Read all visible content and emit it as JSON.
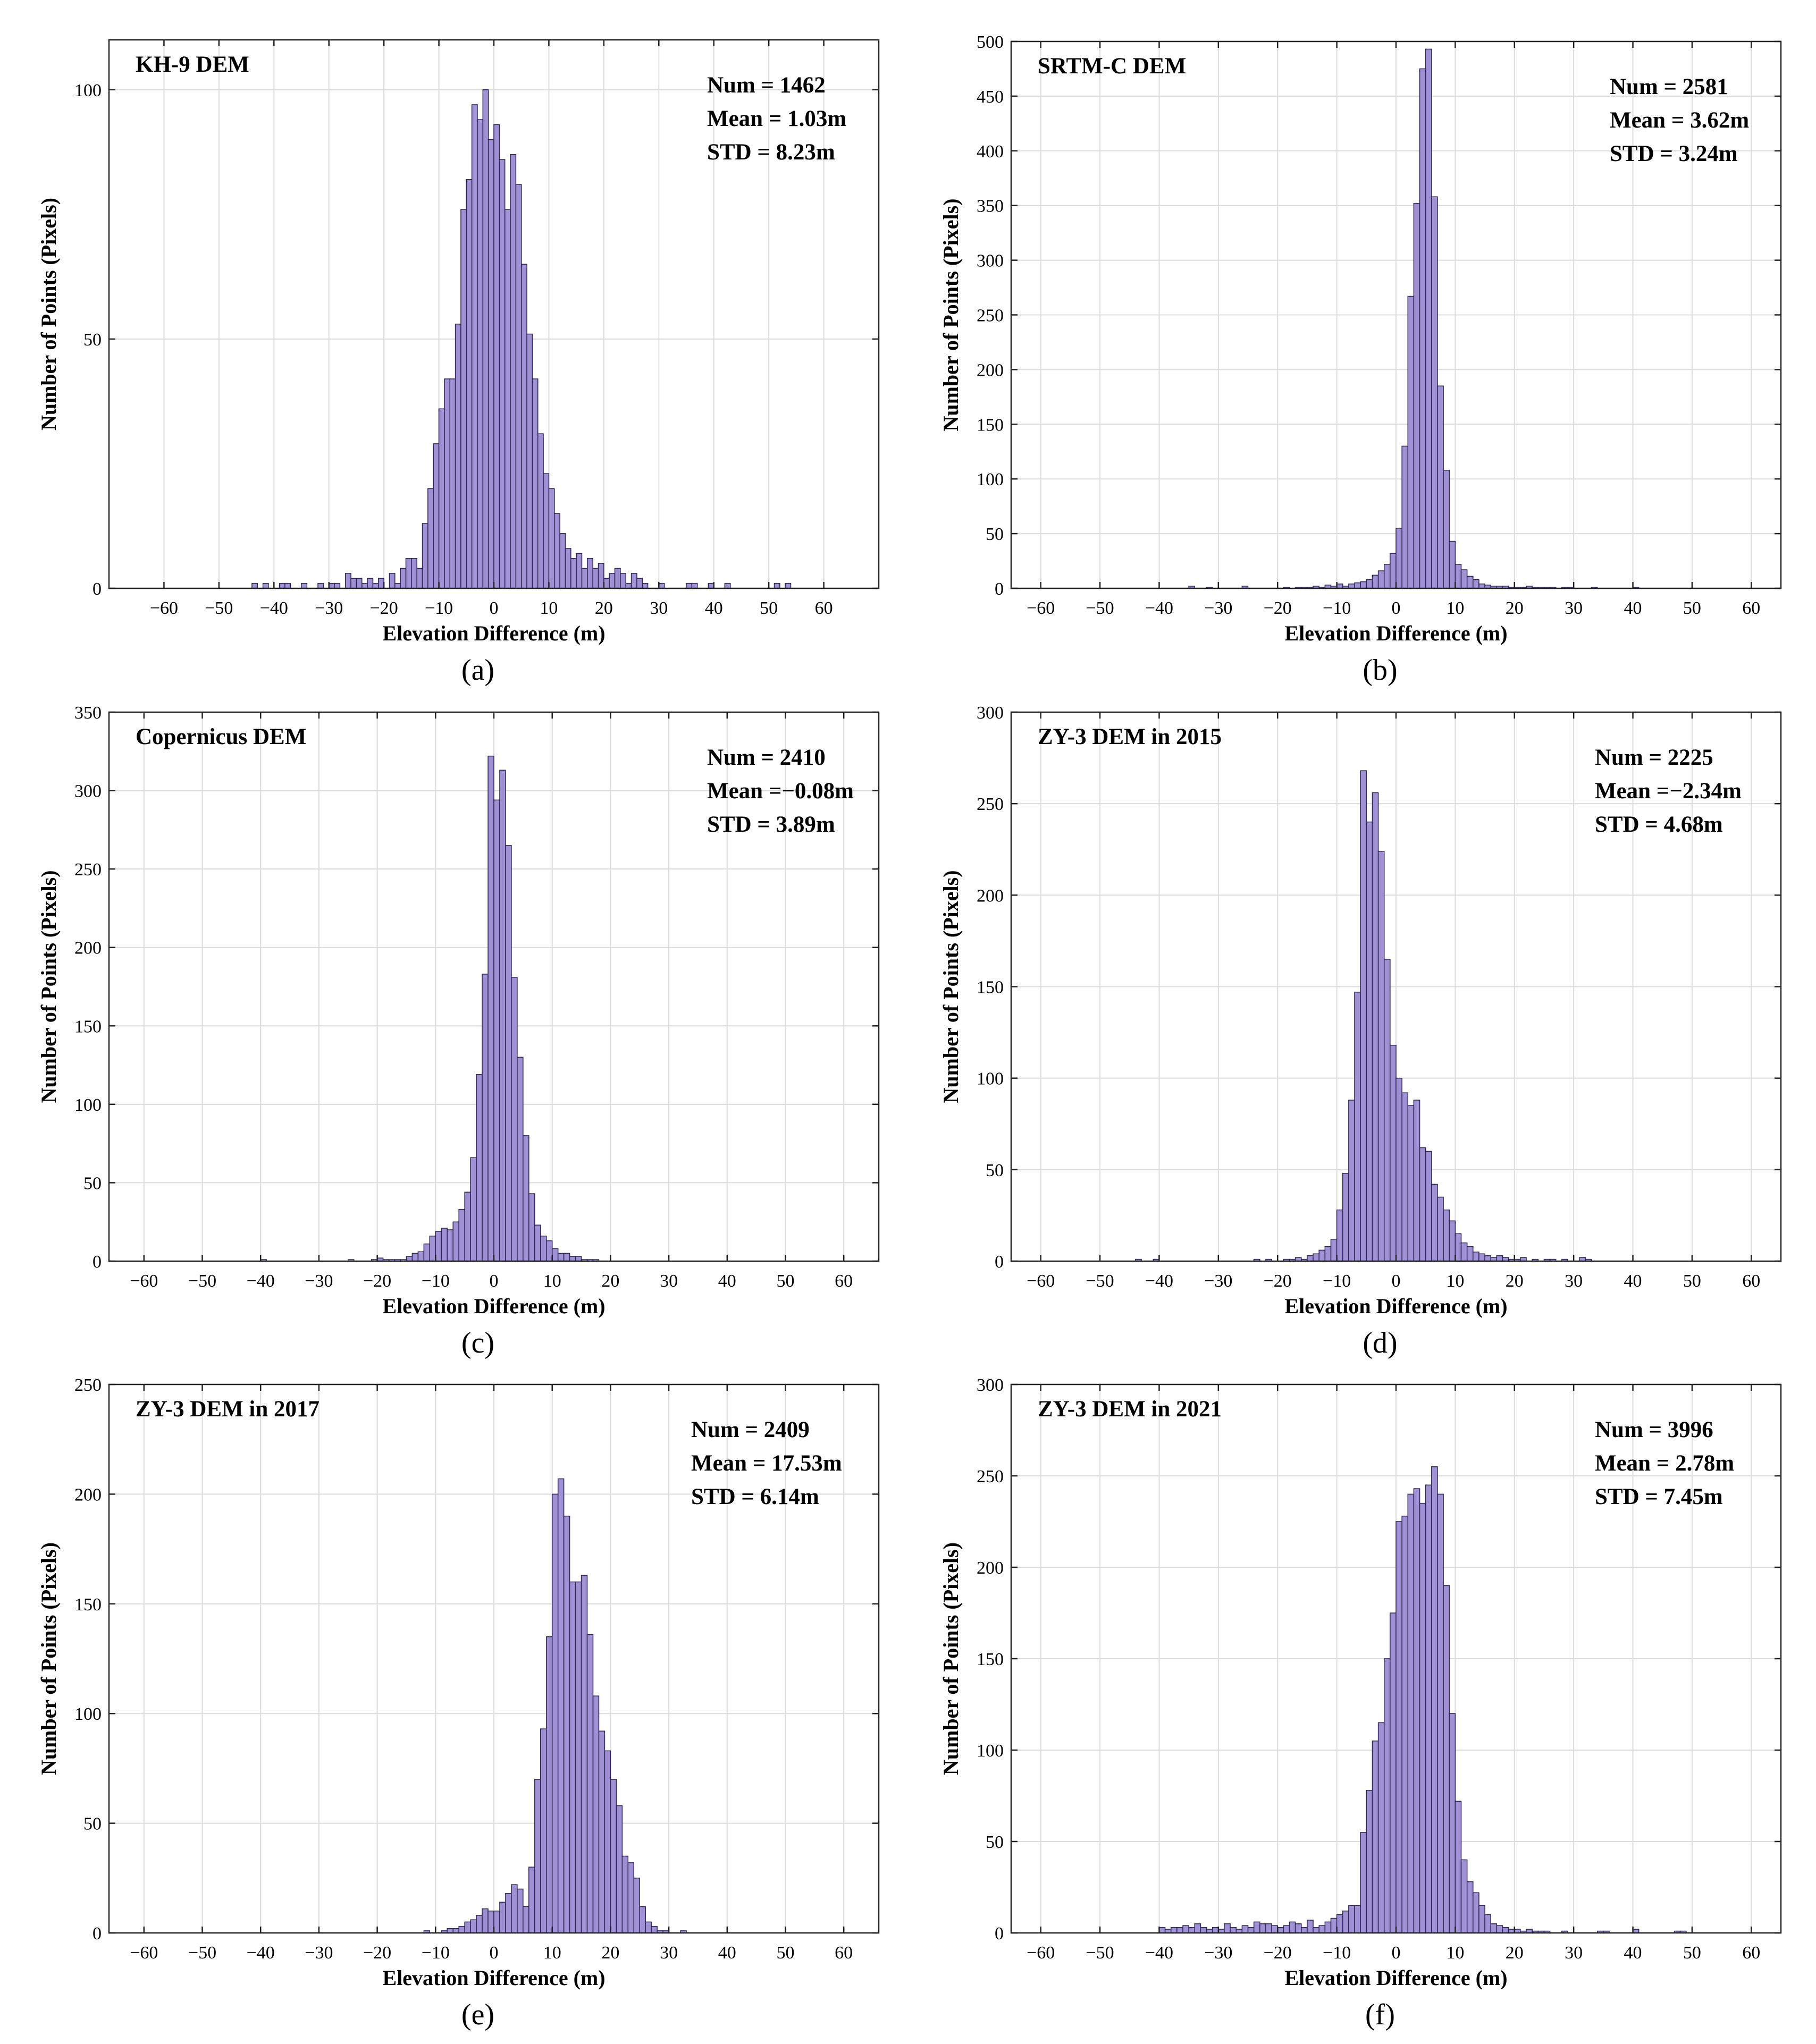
{
  "colors": {
    "bar_fill": "#9f91d3",
    "bar_edge": "#2c2557",
    "grid": "#dcdcdc"
  },
  "chart_data": [
    {
      "type": "bar",
      "caption": "(a)",
      "title": "KH-9 DEM",
      "stats": [
        "Num = 1462",
        "Mean = 1.03m",
        "STD = 8.23m"
      ],
      "xlabel": "Elevation Difference (m)",
      "ylabel": "Number of Points (Pixels)",
      "xlim": [
        -70,
        70
      ],
      "ylim": [
        0,
        110
      ],
      "xticks": [
        -60,
        -50,
        -40,
        -30,
        -20,
        -10,
        0,
        10,
        20,
        30,
        40,
        50,
        60
      ],
      "yticks": [
        0,
        50,
        100
      ],
      "bin_width": 1,
      "bin_start": -44,
      "values": [
        1,
        0,
        1,
        0,
        0,
        1,
        1,
        0,
        0,
        1,
        0,
        0,
        1,
        0,
        1,
        1,
        0,
        3,
        2,
        2,
        1,
        2,
        1,
        2,
        0,
        3,
        1,
        4,
        6,
        6,
        4,
        13,
        20,
        29,
        36,
        42,
        42,
        53,
        76,
        82,
        97,
        94,
        100,
        90,
        93,
        86,
        76,
        87,
        81,
        65,
        51,
        42,
        31,
        23,
        20,
        15,
        11,
        8,
        6,
        7,
        4,
        6,
        4,
        5,
        2,
        3,
        4,
        3,
        1,
        3,
        2,
        1,
        0,
        0,
        1,
        0,
        0,
        0,
        0,
        1,
        1,
        0,
        0,
        1,
        0,
        0,
        1,
        0,
        0,
        0,
        0,
        0,
        0,
        0,
        0,
        1,
        0,
        1
      ]
    },
    {
      "type": "bar",
      "caption": "(b)",
      "title": "SRTM-C DEM",
      "stats": [
        "Num = 2581",
        "Mean = 3.62m",
        "STD = 3.24m"
      ],
      "xlabel": "Elevation Difference (m)",
      "ylabel": "Number of Points (Pixels)",
      "xlim": [
        -65,
        65
      ],
      "ylim": [
        0,
        500
      ],
      "xticks": [
        -60,
        -50,
        -40,
        -30,
        -20,
        -10,
        0,
        10,
        20,
        30,
        40,
        50,
        60
      ],
      "yticks": [
        0,
        50,
        100,
        150,
        200,
        250,
        300,
        350,
        400,
        450,
        500
      ],
      "bin_width": 1,
      "bin_start": -35,
      "values": [
        2,
        0,
        0,
        1,
        0,
        0,
        0,
        0,
        0,
        2,
        0,
        0,
        0,
        0,
        0,
        0,
        1,
        0,
        1,
        1,
        1,
        2,
        1,
        3,
        2,
        4,
        2,
        4,
        5,
        6,
        8,
        12,
        16,
        22,
        32,
        55,
        130,
        267,
        352,
        475,
        493,
        358,
        185,
        108,
        43,
        22,
        17,
        11,
        8,
        4,
        3,
        2,
        2,
        2,
        1,
        1,
        1,
        2,
        1,
        1,
        1,
        1,
        0,
        1,
        1,
        0,
        0,
        0,
        1,
        0,
        0,
        0,
        0,
        0,
        0,
        1
      ]
    },
    {
      "type": "bar",
      "caption": "(c)",
      "title": "Copernicus DEM",
      "stats": [
        "Num = 2410",
        "Mean =−0.08m",
        "STD = 3.89m"
      ],
      "xlabel": "Elevation Difference (m)",
      "ylabel": "Number of Points (Pixels)",
      "xlim": [
        -66,
        66
      ],
      "ylim": [
        0,
        350
      ],
      "xticks": [
        -60,
        -50,
        -40,
        -30,
        -20,
        -10,
        0,
        10,
        20,
        30,
        40,
        50,
        60
      ],
      "yticks": [
        0,
        50,
        100,
        150,
        200,
        250,
        300,
        350
      ],
      "bin_width": 1,
      "bin_start": -40,
      "values": [
        1,
        0,
        0,
        0,
        0,
        0,
        0,
        0,
        0,
        0,
        0,
        0,
        0,
        0,
        0,
        1,
        0,
        0,
        0,
        1,
        2,
        1,
        1,
        1,
        1,
        3,
        5,
        6,
        11,
        16,
        19,
        21,
        20,
        25,
        33,
        44,
        66,
        119,
        183,
        322,
        294,
        313,
        265,
        181,
        130,
        80,
        43,
        23,
        16,
        13,
        8,
        5,
        5,
        3,
        3,
        1,
        1,
        1
      ]
    },
    {
      "type": "bar",
      "caption": "(d)",
      "title": "ZY-3 DEM in 2015",
      "stats": [
        "Num = 2225",
        "Mean =−2.34m",
        "STD = 4.68m"
      ],
      "xlabel": "Elevation Difference (m)",
      "ylabel": "Number of Points (Pixels)",
      "xlim": [
        -65,
        65
      ],
      "ylim": [
        0,
        300
      ],
      "xticks": [
        -60,
        -50,
        -40,
        -30,
        -20,
        -10,
        0,
        10,
        20,
        30,
        40,
        50,
        60
      ],
      "yticks": [
        0,
        50,
        100,
        150,
        200,
        250,
        300
      ],
      "bin_width": 1,
      "bin_start": -44,
      "values": [
        1,
        0,
        0,
        1,
        0,
        0,
        0,
        0,
        0,
        0,
        0,
        0,
        0,
        0,
        0,
        0,
        0,
        0,
        0,
        0,
        1,
        0,
        1,
        0,
        0,
        1,
        1,
        2,
        1,
        3,
        4,
        6,
        8,
        12,
        28,
        48,
        88,
        147,
        268,
        240,
        256,
        224,
        165,
        118,
        100,
        92,
        85,
        88,
        62,
        60,
        42,
        35,
        28,
        22,
        15,
        10,
        8,
        5,
        4,
        3,
        2,
        3,
        2,
        1,
        1,
        2,
        0,
        1,
        0,
        1,
        1,
        0,
        1,
        0,
        0,
        2,
        1
      ]
    },
    {
      "type": "bar",
      "caption": "(e)",
      "title": "ZY-3 DEM in 2017",
      "stats": [
        "Num = 2409",
        "Mean = 17.53m",
        "STD = 6.14m"
      ],
      "xlabel": "Elevation Difference (m)",
      "ylabel": "Number of Points (Pixels)",
      "xlim": [
        -66,
        66
      ],
      "ylim": [
        0,
        250
      ],
      "xticks": [
        -60,
        -50,
        -40,
        -30,
        -20,
        -10,
        0,
        10,
        20,
        30,
        40,
        50,
        60
      ],
      "yticks": [
        0,
        50,
        100,
        150,
        200,
        250
      ],
      "bin_width": 1,
      "bin_start": -12,
      "values": [
        1,
        0,
        0,
        1,
        2,
        2,
        3,
        5,
        6,
        8,
        11,
        10,
        10,
        14,
        18,
        22,
        20,
        12,
        30,
        70,
        93,
        135,
        200,
        207,
        190,
        160,
        160,
        163,
        136,
        108,
        92,
        83,
        70,
        58,
        35,
        32,
        25,
        12,
        5,
        3,
        1,
        1,
        0,
        0,
        1
      ]
    },
    {
      "type": "bar",
      "caption": "(f)",
      "title": "ZY-3 DEM in 2021",
      "stats": [
        "Num = 3996",
        "Mean = 2.78m",
        "STD = 7.45m"
      ],
      "xlabel": "Elevation Difference (m)",
      "ylabel": "Number of Points (Pixels)",
      "xlim": [
        -65,
        65
      ],
      "ylim": [
        0,
        300
      ],
      "xticks": [
        -60,
        -50,
        -40,
        -30,
        -20,
        -10,
        0,
        10,
        20,
        30,
        40,
        50,
        60
      ],
      "yticks": [
        0,
        50,
        100,
        150,
        200,
        250,
        300
      ],
      "bin_width": 1,
      "bin_start": -40,
      "values": [
        3,
        2,
        3,
        3,
        4,
        3,
        5,
        3,
        2,
        3,
        2,
        5,
        3,
        2,
        4,
        3,
        6,
        5,
        5,
        4,
        3,
        4,
        6,
        5,
        3,
        7,
        3,
        4,
        6,
        8,
        10,
        12,
        15,
        15,
        55,
        78,
        105,
        115,
        150,
        175,
        225,
        228,
        240,
        243,
        235,
        245,
        255,
        240,
        190,
        120,
        72,
        40,
        28,
        22,
        15,
        10,
        5,
        4,
        3,
        2,
        2,
        1,
        2,
        1,
        1,
        1,
        0,
        0,
        1,
        0,
        0,
        0,
        0,
        0,
        1,
        1,
        0,
        0,
        0,
        0,
        2,
        0,
        0,
        0,
        0,
        0,
        0,
        1,
        1
      ]
    }
  ]
}
